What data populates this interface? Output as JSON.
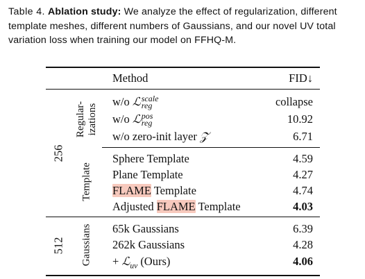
{
  "caption": {
    "label": "Table 4.",
    "bold_lead": "Ablation study:",
    "line1_rest": "We analyze the effect of regularization, different",
    "line2": "template meshes, different numbers of Gaussians, and our novel UV total",
    "line3": "variation loss when training our model on FFHQ-M."
  },
  "table": {
    "header": {
      "method": "Method",
      "fid": "FID↓"
    },
    "groups": {
      "res_256": "256",
      "res_512": "512",
      "reg_line1": "Regular-",
      "reg_line2": "izations",
      "template": "Template",
      "gaussians": "Gaussians"
    },
    "rows": [
      {
        "prefix": "w/o",
        "symbol": "ℒ",
        "sup": "scale",
        "sub": "reg",
        "fid": "collapse"
      },
      {
        "prefix": "w/o",
        "symbol": "ℒ",
        "sup": "pos",
        "sub": "reg",
        "fid": "10.92"
      },
      {
        "method": "w/o zero-init layer",
        "symbol": "𝒵",
        "fid": "6.71"
      },
      {
        "method": "Sphere Template",
        "fid": "4.59"
      },
      {
        "method": "Plane Template",
        "fid": "4.27"
      },
      {
        "highlight": "FLAME",
        "method_rest": "Template",
        "fid": "4.74"
      },
      {
        "method_pre": "Adjusted",
        "highlight": "FLAME",
        "method_rest": "Template",
        "fid": "4.03"
      },
      {
        "method": "65k Gaussians",
        "fid": "6.39"
      },
      {
        "method": "262k Gaussians",
        "fid": "4.28"
      },
      {
        "prefix": "+",
        "symbol": "ℒ",
        "sub": "uv",
        "suffix": "(Ours)",
        "fid": "4.06"
      }
    ]
  }
}
